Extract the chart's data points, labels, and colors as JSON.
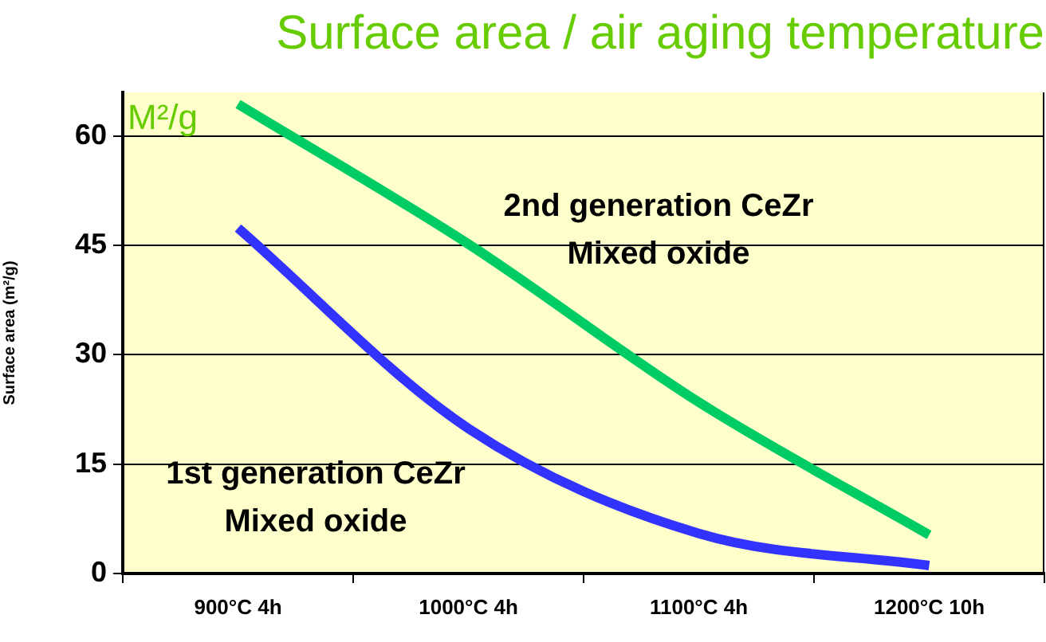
{
  "chart_data": {
    "type": "line",
    "title": "Surface area / air aging temperature",
    "ylabel": "Surface area (m²/g)",
    "categories": [
      "900°C 4h",
      "1000°C 4h",
      "1100°C 4h",
      "1200°C 10h"
    ],
    "series": [
      {
        "color": "#00cc66",
        "values": [
          64.4,
          45.2,
          23.5,
          5.3
        ]
      },
      {
        "color": "#3333ff",
        "values": [
          47.4,
          19.9,
          5.5,
          1.1
        ]
      }
    ],
    "ylim": [
      0,
      66
    ],
    "yticks": [
      0,
      15,
      30,
      45,
      60
    ],
    "grid": "y",
    "legend": false,
    "marker": "none",
    "line_style": "solid",
    "annotations": [
      "M²/g",
      "2nd generation CeZr\nMixed oxide",
      "1st generation CeZr\nMixed oxide"
    ]
  }
}
